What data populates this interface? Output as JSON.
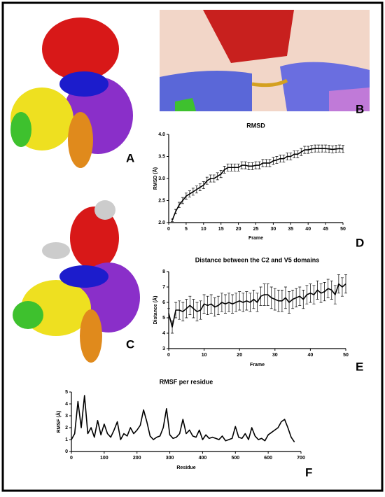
{
  "panels": [
    "A",
    "B",
    "C",
    "D",
    "E",
    "F"
  ],
  "chart_data": [
    {
      "type": "line",
      "title": "RMSD",
      "x_label": "Frame",
      "y_label": "RMSD (Å)",
      "color": "#000000",
      "x": [
        1,
        2,
        3,
        4,
        5,
        6,
        7,
        8,
        9,
        10,
        11,
        12,
        13,
        14,
        15,
        16,
        17,
        18,
        19,
        20,
        21,
        22,
        23,
        24,
        25,
        26,
        27,
        28,
        29,
        30,
        31,
        32,
        33,
        34,
        35,
        36,
        37,
        38,
        39,
        40,
        41,
        42,
        43,
        44,
        45,
        46,
        47,
        48,
        49,
        50
      ],
      "values": [
        2.05,
        2.25,
        2.4,
        2.5,
        2.6,
        2.65,
        2.7,
        2.75,
        2.8,
        2.85,
        2.95,
        3.0,
        3.0,
        3.05,
        3.1,
        3.2,
        3.25,
        3.25,
        3.25,
        3.25,
        3.3,
        3.3,
        3.28,
        3.28,
        3.3,
        3.3,
        3.35,
        3.35,
        3.35,
        3.4,
        3.42,
        3.45,
        3.45,
        3.5,
        3.5,
        3.55,
        3.55,
        3.6,
        3.65,
        3.65,
        3.67,
        3.68,
        3.68,
        3.68,
        3.68,
        3.67,
        3.66,
        3.67,
        3.68,
        3.67
      ],
      "errors": [
        0.03,
        0.05,
        0.06,
        0.07,
        0.07,
        0.07,
        0.08,
        0.08,
        0.08,
        0.08,
        0.08,
        0.08,
        0.08,
        0.08,
        0.08,
        0.08,
        0.08,
        0.08,
        0.08,
        0.08,
        0.08,
        0.08,
        0.08,
        0.08,
        0.08,
        0.08,
        0.08,
        0.08,
        0.08,
        0.08,
        0.08,
        0.08,
        0.08,
        0.08,
        0.08,
        0.08,
        0.08,
        0.08,
        0.08,
        0.08,
        0.08,
        0.08,
        0.08,
        0.08,
        0.08,
        0.08,
        0.08,
        0.08,
        0.08,
        0.08
      ],
      "xlim": [
        0,
        50
      ],
      "xticks": [
        0,
        5,
        10,
        15,
        20,
        25,
        30,
        35,
        40,
        45,
        50
      ],
      "ylim": [
        2,
        4
      ],
      "yticks": [
        {
          "value": 2,
          "label": "2.0"
        },
        {
          "value": 2.5,
          "label": "2.5"
        },
        {
          "value": 3,
          "label": "3.0"
        },
        {
          "value": 3.5,
          "label": "3.5"
        },
        {
          "value": 4,
          "label": "4.0"
        }
      ]
    },
    {
      "type": "line",
      "title": "Distance between the C2 and V5 domains",
      "x_label": "Frame",
      "y_label": "Distance (Å)",
      "color": "#000000",
      "x": [
        0,
        1,
        2,
        3,
        4,
        5,
        6,
        7,
        8,
        9,
        10,
        11,
        12,
        13,
        14,
        15,
        16,
        17,
        18,
        19,
        20,
        21,
        22,
        23,
        24,
        25,
        26,
        27,
        28,
        29,
        30,
        31,
        32,
        33,
        34,
        35,
        36,
        37,
        38,
        39,
        40,
        41,
        42,
        43,
        44,
        45,
        46,
        47,
        48,
        49,
        50
      ],
      "values": [
        5.3,
        4.4,
        5.5,
        5.5,
        5.4,
        5.6,
        5.8,
        5.6,
        5.4,
        5.5,
        5.9,
        5.8,
        5.9,
        5.7,
        5.8,
        6.0,
        5.9,
        6.0,
        5.9,
        6.0,
        6.1,
        6.0,
        6.1,
        6.0,
        6.2,
        6.0,
        6.4,
        6.5,
        6.5,
        6.3,
        6.2,
        6.1,
        6.1,
        6.3,
        6.0,
        6.2,
        6.3,
        6.4,
        6.2,
        6.5,
        6.6,
        6.5,
        6.8,
        6.6,
        6.7,
        6.9,
        6.8,
        6.5,
        7.2,
        7.0,
        7.2
      ],
      "errors": [
        0.3,
        0.4,
        0.5,
        0.6,
        0.6,
        0.6,
        0.6,
        0.6,
        0.6,
        0.6,
        0.6,
        0.6,
        0.6,
        0.6,
        0.6,
        0.6,
        0.6,
        0.6,
        0.6,
        0.6,
        0.6,
        0.6,
        0.6,
        0.6,
        0.6,
        0.6,
        0.6,
        0.7,
        0.7,
        0.7,
        0.7,
        0.7,
        0.7,
        0.7,
        0.7,
        0.6,
        0.6,
        0.6,
        0.6,
        0.6,
        0.6,
        0.6,
        0.6,
        0.6,
        0.6,
        0.6,
        0.6,
        0.6,
        0.6,
        0.6,
        0.6
      ],
      "xlim": [
        0,
        50
      ],
      "xticks": [
        0,
        10,
        20,
        30,
        40,
        50
      ],
      "ylim": [
        3,
        8
      ],
      "yticks": [
        3,
        4,
        5,
        6,
        7,
        8
      ]
    },
    {
      "type": "line",
      "title": "RMSF per residue",
      "x_label": "Residue",
      "y_label": "RMSF (Å)",
      "color": "#000000",
      "x": [
        0,
        10,
        20,
        30,
        40,
        50,
        60,
        70,
        80,
        90,
        100,
        110,
        120,
        130,
        140,
        150,
        160,
        170,
        180,
        190,
        200,
        210,
        220,
        230,
        240,
        250,
        260,
        270,
        280,
        290,
        300,
        310,
        320,
        330,
        340,
        350,
        360,
        370,
        380,
        390,
        400,
        410,
        420,
        430,
        440,
        450,
        460,
        470,
        480,
        490,
        500,
        510,
        520,
        530,
        540,
        550,
        560,
        570,
        580,
        590,
        600,
        610,
        620,
        630,
        640,
        650,
        660,
        670,
        680
      ],
      "values": [
        1.0,
        1.5,
        4.2,
        2.0,
        4.7,
        1.5,
        2.0,
        1.2,
        2.6,
        1.4,
        2.3,
        1.5,
        1.2,
        1.8,
        2.5,
        1.0,
        1.5,
        1.3,
        2.0,
        1.5,
        1.8,
        2.2,
        3.5,
        2.5,
        1.3,
        1.0,
        1.2,
        1.3,
        2.0,
        3.6,
        1.4,
        1.1,
        1.2,
        1.5,
        2.7,
        1.5,
        1.8,
        1.3,
        1.2,
        1.8,
        1.0,
        1.4,
        1.1,
        1.2,
        1.1,
        1.0,
        1.3,
        0.9,
        1.0,
        1.1,
        2.1,
        1.2,
        1.1,
        1.5,
        1.0,
        2.0,
        1.3,
        1.0,
        1.1,
        0.9,
        1.4,
        1.6,
        1.8,
        2.0,
        2.5,
        2.7,
        2.0,
        1.2,
        0.8
      ],
      "xlim": [
        0,
        700
      ],
      "xticks": [
        0,
        100,
        200,
        300,
        400,
        500,
        600,
        700
      ],
      "ylim": [
        0,
        5
      ],
      "yticks": [
        0,
        1,
        2,
        3,
        4,
        5
      ]
    }
  ]
}
